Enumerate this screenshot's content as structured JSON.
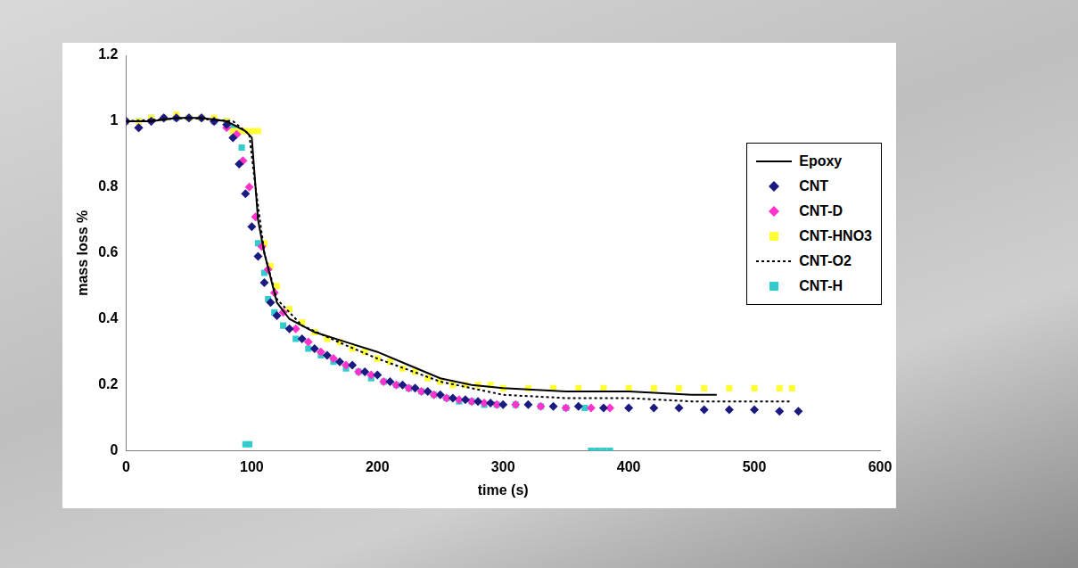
{
  "chart_data": {
    "type": "scatter",
    "x_label": "time (s)",
    "y_label": "mass loss %",
    "xlim": [
      0,
      600
    ],
    "xticks": [
      0,
      100,
      200,
      300,
      400,
      500,
      600
    ],
    "ylim": [
      0,
      1.2
    ],
    "yticks": [
      0,
      0.2,
      0.4,
      0.6,
      0.8,
      1,
      1.2
    ],
    "grid": false,
    "legend": "right",
    "series": [
      {
        "name": "Epoxy",
        "type": "line",
        "line_style": "solid",
        "color": "#000000",
        "x": [
          0,
          20,
          40,
          60,
          80,
          95,
          100,
          105,
          110,
          120,
          130,
          150,
          175,
          200,
          225,
          250,
          275,
          300,
          350,
          400,
          450,
          470
        ],
        "values": [
          1.0,
          1.0,
          1.01,
          1.01,
          1.0,
          0.97,
          0.95,
          0.7,
          0.6,
          0.45,
          0.4,
          0.36,
          0.33,
          0.3,
          0.26,
          0.22,
          0.2,
          0.19,
          0.18,
          0.18,
          0.17,
          0.17
        ]
      },
      {
        "name": "CNT",
        "type": "scatter",
        "marker": "diamond",
        "color": "#1a1a80",
        "x": [
          0,
          10,
          20,
          30,
          40,
          50,
          60,
          70,
          80,
          85,
          90,
          95,
          100,
          105,
          110,
          115,
          120,
          130,
          140,
          150,
          160,
          170,
          180,
          190,
          200,
          210,
          220,
          230,
          240,
          250,
          260,
          270,
          280,
          290,
          300,
          320,
          340,
          360,
          380,
          400,
          420,
          440,
          460,
          480,
          500,
          520,
          535
        ],
        "values": [
          1.0,
          0.98,
          1.0,
          1.01,
          1.01,
          1.01,
          1.01,
          1.0,
          0.99,
          0.95,
          0.87,
          0.78,
          0.68,
          0.59,
          0.51,
          0.45,
          0.41,
          0.37,
          0.34,
          0.31,
          0.29,
          0.27,
          0.26,
          0.24,
          0.23,
          0.21,
          0.2,
          0.19,
          0.18,
          0.17,
          0.16,
          0.155,
          0.15,
          0.145,
          0.14,
          0.14,
          0.135,
          0.135,
          0.13,
          0.13,
          0.13,
          0.13,
          0.125,
          0.125,
          0.125,
          0.12,
          0.12
        ]
      },
      {
        "name": "CNT-D",
        "type": "scatter",
        "marker": "diamond",
        "color": "#ff33cc",
        "x": [
          0,
          10,
          20,
          30,
          40,
          50,
          60,
          70,
          80,
          88,
          93,
          98,
          103,
          108,
          113,
          118,
          125,
          135,
          145,
          155,
          165,
          175,
          185,
          195,
          205,
          215,
          225,
          235,
          245,
          255,
          265,
          275,
          285,
          295,
          310,
          330,
          350,
          370,
          385
        ],
        "values": [
          1.0,
          0.98,
          1.0,
          1.01,
          1.01,
          1.01,
          1.01,
          1.0,
          0.98,
          0.96,
          0.88,
          0.8,
          0.71,
          0.62,
          0.55,
          0.48,
          0.42,
          0.37,
          0.33,
          0.3,
          0.28,
          0.26,
          0.24,
          0.23,
          0.21,
          0.2,
          0.19,
          0.18,
          0.17,
          0.16,
          0.155,
          0.15,
          0.145,
          0.14,
          0.14,
          0.135,
          0.13,
          0.13,
          0.13
        ]
      },
      {
        "name": "CNT-HNO3",
        "type": "scatter",
        "marker": "square",
        "color": "#ffff33",
        "x": [
          0,
          10,
          20,
          30,
          40,
          50,
          60,
          70,
          80,
          85,
          90,
          95,
          100,
          105,
          110,
          115,
          120,
          130,
          140,
          150,
          160,
          170,
          180,
          190,
          200,
          210,
          220,
          230,
          240,
          250,
          260,
          270,
          280,
          290,
          300,
          320,
          340,
          360,
          380,
          400,
          420,
          440,
          460,
          480,
          500,
          520,
          530
        ],
        "values": [
          1.0,
          1.0,
          1.01,
          1.01,
          1.02,
          1.01,
          1.01,
          1.01,
          1.0,
          0.97,
          0.97,
          0.97,
          0.97,
          0.97,
          0.63,
          0.56,
          0.5,
          0.43,
          0.39,
          0.36,
          0.34,
          0.33,
          0.31,
          0.3,
          0.28,
          0.27,
          0.25,
          0.24,
          0.22,
          0.21,
          0.2,
          0.2,
          0.2,
          0.2,
          0.19,
          0.19,
          0.19,
          0.19,
          0.19,
          0.19,
          0.19,
          0.19,
          0.19,
          0.19,
          0.19,
          0.19,
          0.19
        ]
      },
      {
        "name": "CNT-O2",
        "type": "line",
        "line_style": "dotted",
        "color": "#000000",
        "x": [
          0,
          50,
          85,
          98,
          103,
          110,
          120,
          140,
          175,
          200,
          250,
          300,
          350,
          400,
          450,
          530
        ],
        "values": [
          1.0,
          1.01,
          1.0,
          0.96,
          0.8,
          0.6,
          0.46,
          0.38,
          0.32,
          0.28,
          0.21,
          0.17,
          0.16,
          0.16,
          0.15,
          0.15
        ]
      },
      {
        "name": "CNT-H",
        "type": "scatter",
        "marker": "square",
        "color": "#33cccc",
        "x": [
          0,
          10,
          20,
          30,
          40,
          50,
          60,
          70,
          80,
          85,
          92,
          95,
          98,
          105,
          110,
          113,
          118,
          125,
          135,
          145,
          155,
          165,
          175,
          185,
          195,
          205,
          215,
          225,
          235,
          245,
          255,
          265,
          275,
          285,
          295,
          310,
          330,
          350,
          365,
          370,
          375,
          380,
          385
        ],
        "values": [
          1.0,
          1.0,
          1.01,
          1.01,
          1.01,
          1.01,
          1.01,
          1.0,
          1.0,
          0.98,
          0.92,
          0.02,
          0.02,
          0.63,
          0.54,
          0.46,
          0.42,
          0.38,
          0.34,
          0.31,
          0.29,
          0.27,
          0.25,
          0.24,
          0.22,
          0.21,
          0.2,
          0.19,
          0.18,
          0.17,
          0.16,
          0.15,
          0.15,
          0.14,
          0.14,
          0.14,
          0.135,
          0.13,
          0.13,
          0,
          0,
          0,
          0
        ]
      }
    ]
  }
}
